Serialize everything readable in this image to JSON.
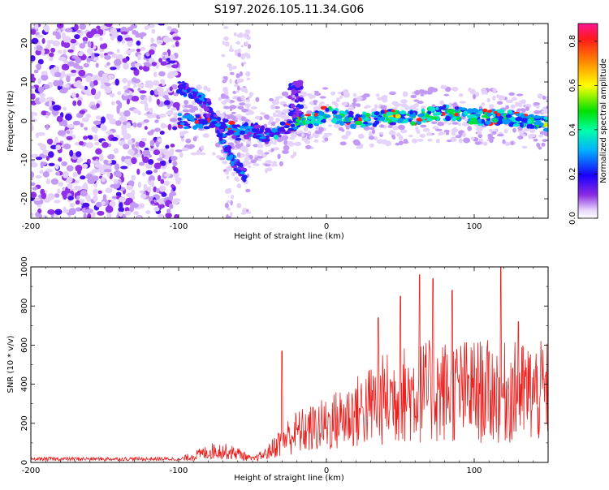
{
  "title": "S197.2026.105.11.34.G06",
  "colors": {
    "snr_line": "#e8201e",
    "axis": "#000000"
  },
  "chart_data": [
    {
      "type": "heatmap",
      "name": "spectrogram",
      "xlabel": "Height of straight line (km)",
      "ylabel": "Frequency (Hz)",
      "xlim": [
        -200,
        150
      ],
      "ylim": [
        -25,
        25
      ],
      "xticks": [
        -200,
        -100,
        0,
        100
      ],
      "yticks": [
        -20,
        -10,
        0,
        10,
        20
      ],
      "colorbar": {
        "label": "Normalized spectral amplitude",
        "range": [
          0,
          0.88
        ],
        "ticks": [
          0.0,
          0.2,
          0.4,
          0.6,
          0.8
        ]
      },
      "ridge": [
        {
          "x": -100,
          "y": 0
        },
        {
          "x": -90,
          "y": 0
        },
        {
          "x": -80,
          "y": 0
        },
        {
          "x": -70,
          "y": -1
        },
        {
          "x": -60,
          "y": -3
        },
        {
          "x": -50,
          "y": -2
        },
        {
          "x": -40,
          "y": -4
        },
        {
          "x": -30,
          "y": -2
        },
        {
          "x": -20,
          "y": 0
        },
        {
          "x": -10,
          "y": 0
        },
        {
          "x": 0,
          "y": 2
        },
        {
          "x": 10,
          "y": 1
        },
        {
          "x": 20,
          "y": 0
        },
        {
          "x": 40,
          "y": 1
        },
        {
          "x": 60,
          "y": 1
        },
        {
          "x": 80,
          "y": 2
        },
        {
          "x": 100,
          "y": 1
        },
        {
          "x": 120,
          "y": 1
        },
        {
          "x": 150,
          "y": -1
        }
      ],
      "branch": [
        {
          "x": -100,
          "y": 9
        },
        {
          "x": -90,
          "y": 7
        },
        {
          "x": -80,
          "y": 4
        },
        {
          "x": -70,
          "y": -5
        },
        {
          "x": -62,
          "y": -11
        },
        {
          "x": -55,
          "y": -14
        }
      ]
    },
    {
      "type": "line",
      "name": "snr",
      "xlabel": "Height of straight line (km)",
      "ylabel": "SNR (10 * v/v)",
      "xlim": [
        -200,
        150
      ],
      "ylim": [
        0,
        1000
      ],
      "xticks": [
        -200,
        -100,
        0,
        100
      ],
      "yticks": [
        0,
        200,
        400,
        600,
        800,
        1000
      ],
      "envelope": [
        {
          "x": -200,
          "y": 15
        },
        {
          "x": -100,
          "y": 15
        },
        {
          "x": -95,
          "y": 30
        },
        {
          "x": -75,
          "y": 80
        },
        {
          "x": -60,
          "y": 60
        },
        {
          "x": -50,
          "y": 20
        },
        {
          "x": -40,
          "y": 60
        },
        {
          "x": -30,
          "y": 150
        },
        {
          "x": -20,
          "y": 200
        },
        {
          "x": -10,
          "y": 220
        },
        {
          "x": 0,
          "y": 250
        },
        {
          "x": 20,
          "y": 330
        },
        {
          "x": 40,
          "y": 420
        },
        {
          "x": 60,
          "y": 460
        },
        {
          "x": 80,
          "y": 470
        },
        {
          "x": 100,
          "y": 470
        },
        {
          "x": 120,
          "y": 460
        },
        {
          "x": 150,
          "y": 460
        }
      ],
      "peaks": [
        {
          "x": -30,
          "y": 570
        },
        {
          "x": 35,
          "y": 740
        },
        {
          "x": 50,
          "y": 850
        },
        {
          "x": 63,
          "y": 960
        },
        {
          "x": 72,
          "y": 940
        },
        {
          "x": 85,
          "y": 880
        },
        {
          "x": 118,
          "y": 1000
        },
        {
          "x": 130,
          "y": 720
        }
      ]
    }
  ]
}
